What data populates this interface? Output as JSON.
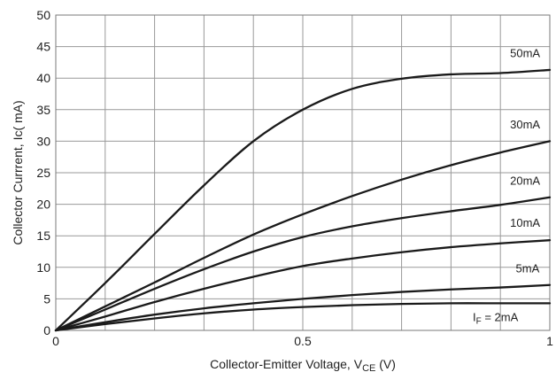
{
  "chart_data": {
    "type": "line",
    "title": "",
    "xlabel": {
      "main": "Collector-Emitter Voltage, V",
      "sub": "CE",
      "unit": " (V)"
    },
    "ylabel": "Collector Currrent, Ic( mA)",
    "xlim": [
      0,
      1
    ],
    "ylim": [
      0,
      50
    ],
    "x_grid_step": 0.1,
    "y_grid_step": 5,
    "x_tick_labels": [
      {
        "value": 0,
        "label": "0"
      },
      {
        "value": 0.5,
        "label": "0.5"
      },
      {
        "value": 1,
        "label": "1"
      }
    ],
    "y_tick_labels": [
      {
        "value": 0,
        "label": "0"
      },
      {
        "value": 5,
        "label": "5"
      },
      {
        "value": 10,
        "label": "10"
      },
      {
        "value": 15,
        "label": "15"
      },
      {
        "value": 20,
        "label": "20"
      },
      {
        "value": 25,
        "label": "25"
      },
      {
        "value": 30,
        "label": "30"
      },
      {
        "value": 35,
        "label": "35"
      },
      {
        "value": 40,
        "label": "40"
      },
      {
        "value": 45,
        "label": "45"
      },
      {
        "value": 50,
        "label": "50"
      }
    ],
    "grid": true,
    "series": [
      {
        "name": "50mA",
        "x": [
          0,
          0.1,
          0.2,
          0.3,
          0.4,
          0.5,
          0.6,
          0.7,
          0.8,
          0.9,
          1.0
        ],
        "y": [
          0,
          7.5,
          15.3,
          23,
          30,
          35,
          38.3,
          39.9,
          40.6,
          40.8,
          41.3
        ]
      },
      {
        "name": "30mA",
        "x": [
          0,
          0.1,
          0.2,
          0.3,
          0.4,
          0.5,
          0.6,
          0.7,
          0.8,
          0.9,
          1.0
        ],
        "y": [
          0,
          3.8,
          7.6,
          11.5,
          15.2,
          18.4,
          21.3,
          23.9,
          26.2,
          28.2,
          30
        ]
      },
      {
        "name": "20mA",
        "x": [
          0,
          0.1,
          0.2,
          0.3,
          0.4,
          0.5,
          0.6,
          0.7,
          0.8,
          0.9,
          1.0
        ],
        "y": [
          0,
          3.3,
          6.6,
          9.7,
          12.5,
          14.8,
          16.5,
          17.8,
          18.9,
          19.9,
          21.1
        ]
      },
      {
        "name": "10mA",
        "x": [
          0,
          0.1,
          0.2,
          0.3,
          0.4,
          0.5,
          0.6,
          0.7,
          0.8,
          0.9,
          1.0
        ],
        "y": [
          0,
          2.2,
          4.5,
          6.6,
          8.5,
          10.2,
          11.4,
          12.4,
          13.2,
          13.8,
          14.3
        ]
      },
      {
        "name": "5mA",
        "x": [
          0,
          0.1,
          0.2,
          0.3,
          0.4,
          0.5,
          0.6,
          0.7,
          0.8,
          0.9,
          1.0
        ],
        "y": [
          0,
          1.3,
          2.5,
          3.5,
          4.3,
          5.0,
          5.6,
          6.1,
          6.5,
          6.8,
          7.2
        ]
      },
      {
        "name": "I_F = 2mA",
        "x": [
          0,
          0.1,
          0.2,
          0.3,
          0.4,
          0.5,
          0.6,
          0.7,
          0.8,
          0.9,
          1.0
        ],
        "y": [
          0,
          1.0,
          1.9,
          2.7,
          3.3,
          3.7,
          4.0,
          4.2,
          4.3,
          4.3,
          4.3
        ]
      }
    ],
    "series_labels": [
      {
        "series": "50mA",
        "text": "50mA",
        "x": 0.95,
        "y": 43.3
      },
      {
        "series": "30mA",
        "text": "30mA",
        "x": 0.95,
        "y": 32.0
      },
      {
        "series": "20mA",
        "text": "20mA",
        "x": 0.95,
        "y": 23.1
      },
      {
        "series": "10mA",
        "text": "10mA",
        "x": 0.95,
        "y": 16.4
      },
      {
        "series": "5mA",
        "text": "5mA",
        "x": 0.955,
        "y": 9.2
      },
      {
        "series": "I_F = 2mA",
        "text_main": "I",
        "text_sub": "F",
        "text_rest": " = 2mA",
        "x": 0.89,
        "y": 1.5
      }
    ]
  }
}
